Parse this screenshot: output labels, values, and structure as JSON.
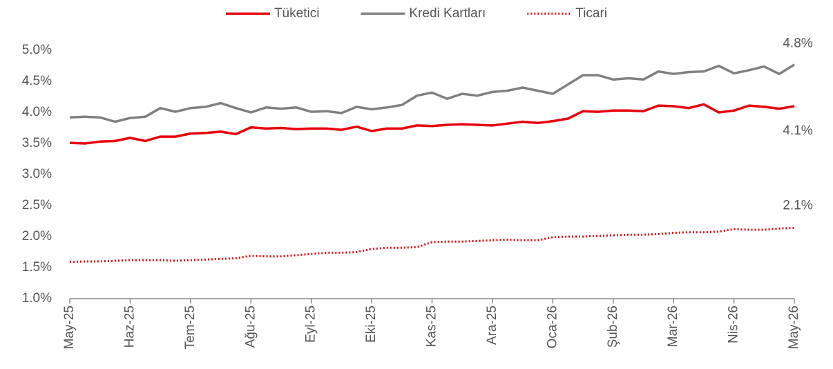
{
  "chart_data": {
    "type": "line",
    "categories": [
      "May-25",
      null,
      null,
      null,
      "Haz-25",
      null,
      null,
      null,
      "Tem-25",
      null,
      null,
      null,
      "Ağu-25",
      null,
      null,
      null,
      "Eyl-25",
      null,
      null,
      null,
      "Eki-25",
      null,
      null,
      null,
      "Kas-25",
      null,
      null,
      null,
      "Ara-25",
      null,
      null,
      null,
      "Oca-26",
      null,
      null,
      null,
      "Şub-26",
      null,
      null,
      null,
      "Mar-26",
      null,
      null,
      null,
      "Nis-26",
      null,
      null,
      null,
      "May-26"
    ],
    "series": [
      {
        "name": "Tüketici",
        "color": "#e8000b",
        "dash": "solid",
        "values": [
          3.51,
          3.5,
          3.53,
          3.54,
          3.59,
          3.54,
          3.61,
          3.61,
          3.66,
          3.67,
          3.69,
          3.65,
          3.76,
          3.74,
          3.75,
          3.73,
          3.74,
          3.74,
          3.72,
          3.77,
          3.7,
          3.74,
          3.74,
          3.79,
          3.78,
          3.8,
          3.81,
          3.8,
          3.79,
          3.82,
          3.85,
          3.83,
          3.86,
          3.9,
          4.02,
          4.01,
          4.03,
          4.03,
          4.02,
          4.11,
          4.1,
          4.07,
          4.13,
          4.0,
          4.03,
          4.11,
          4.09,
          4.06,
          4.1
        ],
        "value_labels": [
          null,
          null,
          null,
          null,
          null,
          null,
          null,
          null,
          null,
          null,
          null,
          null,
          null,
          null,
          null,
          null,
          null,
          null,
          null,
          null,
          null,
          null,
          null,
          null,
          null,
          null,
          null,
          null,
          null,
          null,
          null,
          null,
          null,
          null,
          null,
          null,
          null,
          null,
          null,
          null,
          null,
          null,
          null,
          null,
          null,
          null,
          null,
          null,
          "4.1%"
        ]
      },
      {
        "name": "Kredi Kartları",
        "color": "#808080",
        "dash": "solid",
        "values": [
          3.92,
          3.93,
          3.92,
          3.85,
          3.91,
          3.93,
          4.07,
          4.01,
          4.07,
          4.09,
          4.15,
          4.07,
          4.0,
          4.08,
          4.06,
          4.08,
          4.01,
          4.02,
          3.99,
          4.09,
          4.05,
          4.08,
          4.12,
          4.27,
          4.32,
          4.22,
          4.3,
          4.27,
          4.33,
          4.35,
          4.4,
          4.35,
          4.3,
          4.45,
          4.6,
          4.6,
          4.53,
          4.55,
          4.53,
          4.66,
          4.62,
          4.65,
          4.66,
          4.75,
          4.63,
          4.68,
          4.74,
          4.62,
          4.77
        ],
        "value_labels": [
          null,
          null,
          null,
          null,
          null,
          null,
          null,
          null,
          null,
          null,
          null,
          null,
          null,
          null,
          null,
          null,
          null,
          null,
          null,
          null,
          null,
          null,
          null,
          null,
          null,
          null,
          null,
          null,
          null,
          null,
          null,
          null,
          null,
          null,
          null,
          null,
          null,
          null,
          null,
          null,
          null,
          null,
          null,
          null,
          null,
          null,
          null,
          null,
          "4.8%"
        ]
      },
      {
        "name": "Ticari",
        "color": "#e8000b",
        "dash": "dotted",
        "values": [
          1.59,
          1.6,
          1.6,
          1.61,
          1.62,
          1.62,
          1.62,
          1.61,
          1.62,
          1.63,
          1.64,
          1.65,
          1.69,
          1.68,
          1.68,
          1.7,
          1.72,
          1.74,
          1.74,
          1.75,
          1.8,
          1.82,
          1.82,
          1.83,
          1.91,
          1.92,
          1.92,
          1.93,
          1.94,
          1.95,
          1.94,
          1.94,
          1.99,
          2.0,
          2.0,
          2.01,
          2.02,
          2.03,
          2.03,
          2.04,
          2.06,
          2.07,
          2.07,
          2.08,
          2.12,
          2.11,
          2.11,
          2.13,
          2.14
        ],
        "value_labels": [
          null,
          null,
          null,
          null,
          null,
          null,
          null,
          null,
          null,
          null,
          null,
          null,
          null,
          null,
          null,
          null,
          null,
          null,
          null,
          null,
          null,
          null,
          null,
          null,
          null,
          null,
          null,
          null,
          null,
          null,
          null,
          null,
          null,
          null,
          null,
          null,
          null,
          null,
          null,
          null,
          null,
          null,
          null,
          null,
          null,
          null,
          null,
          null,
          "2.1%"
        ]
      }
    ],
    "ylim": [
      1.0,
      5.0
    ],
    "yticks": [
      {
        "value": 1.0,
        "label": "1.0%"
      },
      {
        "value": 1.5,
        "label": "1.5%"
      },
      {
        "value": 2.0,
        "label": "2.0%"
      },
      {
        "value": 2.5,
        "label": "2.5%"
      },
      {
        "value": 3.0,
        "label": "3.0%"
      },
      {
        "value": 3.5,
        "label": "3.5%"
      },
      {
        "value": 4.0,
        "label": "4.0%"
      },
      {
        "value": 4.5,
        "label": "4.5%"
      },
      {
        "value": 5.0,
        "label": "5.0%"
      }
    ],
    "grid": false,
    "legend": "top"
  }
}
